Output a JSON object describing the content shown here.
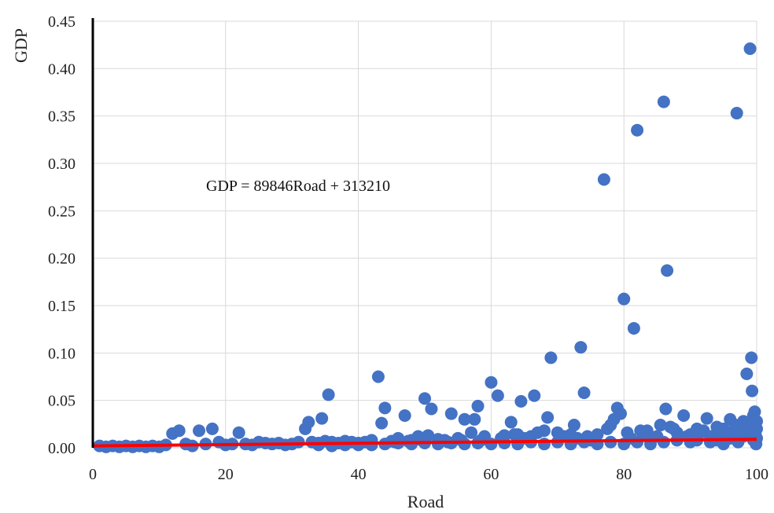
{
  "chart_data": {
    "type": "scatter",
    "xlabel": "Road",
    "ylabel": "GDP",
    "xlim": [
      0,
      100
    ],
    "ylim": [
      0,
      0.45
    ],
    "x_ticks": [
      "0",
      "20",
      "40",
      "60",
      "80",
      "100"
    ],
    "y_ticks": [
      "0.00",
      "0.05",
      "0.10",
      "0.15",
      "0.20",
      "0.25",
      "0.30",
      "0.35",
      "0.40",
      "0.45"
    ],
    "grid": true,
    "equation": "GDP = 89846Road + 313210",
    "point_color": "#4472C4",
    "trend_color": "#FF0000",
    "trendline": {
      "x": [
        0,
        100
      ],
      "y": [
        0.002,
        0.009
      ]
    },
    "points": [
      [
        1,
        0.002
      ],
      [
        2,
        0.001
      ],
      [
        3,
        0.002
      ],
      [
        4,
        0.001
      ],
      [
        5,
        0.002
      ],
      [
        6,
        0.001
      ],
      [
        7,
        0.002
      ],
      [
        8,
        0.001
      ],
      [
        9,
        0.002
      ],
      [
        10,
        0.001
      ],
      [
        11,
        0.003
      ],
      [
        12,
        0.015
      ],
      [
        13,
        0.018
      ],
      [
        14,
        0.004
      ],
      [
        15,
        0.002
      ],
      [
        16,
        0.018
      ],
      [
        17,
        0.004
      ],
      [
        18,
        0.02
      ],
      [
        19,
        0.006
      ],
      [
        20,
        0.003
      ],
      [
        21,
        0.004
      ],
      [
        22,
        0.016
      ],
      [
        23,
        0.004
      ],
      [
        24,
        0.003
      ],
      [
        25,
        0.006
      ],
      [
        26,
        0.005
      ],
      [
        27,
        0.004
      ],
      [
        28,
        0.005
      ],
      [
        29,
        0.003
      ],
      [
        30,
        0.004
      ],
      [
        31,
        0.006
      ],
      [
        32,
        0.02
      ],
      [
        32.5,
        0.027
      ],
      [
        33,
        0.006
      ],
      [
        34,
        0.005
      ],
      [
        34.5,
        0.031
      ],
      [
        35,
        0.007
      ],
      [
        35.5,
        0.056
      ],
      [
        36,
        0.006
      ],
      [
        37,
        0.005
      ],
      [
        38,
        0.007
      ],
      [
        39,
        0.006
      ],
      [
        40,
        0.005
      ],
      [
        41,
        0.006
      ],
      [
        42,
        0.008
      ],
      [
        43,
        0.075
      ],
      [
        43.5,
        0.026
      ],
      [
        44,
        0.042
      ],
      [
        45,
        0.007
      ],
      [
        46,
        0.01
      ],
      [
        47,
        0.034
      ],
      [
        48,
        0.008
      ],
      [
        49,
        0.012
      ],
      [
        50,
        0.052
      ],
      [
        50.5,
        0.013
      ],
      [
        51,
        0.041
      ],
      [
        52,
        0.009
      ],
      [
        53,
        0.008
      ],
      [
        54,
        0.036
      ],
      [
        55,
        0.01
      ],
      [
        56,
        0.03
      ],
      [
        57,
        0.016
      ],
      [
        57.5,
        0.03
      ],
      [
        58,
        0.044
      ],
      [
        59,
        0.012
      ],
      [
        60,
        0.069
      ],
      [
        61,
        0.055
      ],
      [
        62,
        0.013
      ],
      [
        63,
        0.027
      ],
      [
        64,
        0.014
      ],
      [
        64.5,
        0.049
      ],
      [
        65,
        0.01
      ],
      [
        66,
        0.012
      ],
      [
        66.5,
        0.055
      ],
      [
        67,
        0.016
      ],
      [
        68,
        0.018
      ],
      [
        68.5,
        0.032
      ],
      [
        69,
        0.095
      ],
      [
        70,
        0.016
      ],
      [
        71,
        0.012
      ],
      [
        72,
        0.014
      ],
      [
        72.5,
        0.024
      ],
      [
        73,
        0.01
      ],
      [
        73.5,
        0.106
      ],
      [
        74,
        0.058
      ],
      [
        74.5,
        0.012
      ],
      [
        75,
        0.008
      ],
      [
        76,
        0.014
      ],
      [
        77,
        0.283
      ],
      [
        77.5,
        0.02
      ],
      [
        78,
        0.024
      ],
      [
        78.5,
        0.03
      ],
      [
        79,
        0.042
      ],
      [
        79.5,
        0.036
      ],
      [
        80,
        0.157
      ],
      [
        80.5,
        0.016
      ],
      [
        81,
        0.01
      ],
      [
        81.5,
        0.126
      ],
      [
        82,
        0.335
      ],
      [
        82.5,
        0.018
      ],
      [
        83,
        0.014
      ],
      [
        84,
        0.01
      ],
      [
        85,
        0.012
      ],
      [
        85.5,
        0.024
      ],
      [
        86,
        0.365
      ],
      [
        86.3,
        0.041
      ],
      [
        86.5,
        0.187
      ],
      [
        87,
        0.022
      ],
      [
        87.5,
        0.02
      ],
      [
        88,
        0.016
      ],
      [
        89,
        0.034
      ],
      [
        90,
        0.014
      ],
      [
        91,
        0.02
      ],
      [
        92,
        0.018
      ],
      [
        92.5,
        0.031
      ],
      [
        93,
        0.012
      ],
      [
        94,
        0.022
      ],
      [
        95,
        0.02
      ],
      [
        96,
        0.03
      ],
      [
        96.5,
        0.014
      ],
      [
        97,
        0.353
      ],
      [
        97.5,
        0.024
      ],
      [
        98,
        0.028
      ],
      [
        98.5,
        0.078
      ],
      [
        99,
        0.421
      ],
      [
        99.2,
        0.095
      ],
      [
        99.3,
        0.06
      ],
      [
        99.5,
        0.034
      ],
      [
        99.7,
        0.038
      ],
      [
        100,
        0.028
      ],
      [
        100,
        0.02
      ],
      [
        99.8,
        0.014
      ],
      [
        99.5,
        0.008
      ],
      [
        98.7,
        0.018
      ],
      [
        98,
        0.012
      ],
      [
        97.2,
        0.006
      ],
      [
        96,
        0.01
      ],
      [
        95,
        0.004
      ],
      [
        94,
        0.008
      ],
      [
        93,
        0.006
      ],
      [
        91,
        0.008
      ],
      [
        90,
        0.006
      ],
      [
        88,
        0.008
      ],
      [
        86,
        0.006
      ],
      [
        84,
        0.004
      ],
      [
        82,
        0.006
      ],
      [
        80,
        0.004
      ],
      [
        78,
        0.006
      ],
      [
        76,
        0.004
      ],
      [
        74,
        0.006
      ],
      [
        72,
        0.004
      ],
      [
        70,
        0.006
      ],
      [
        68,
        0.004
      ],
      [
        66,
        0.006
      ],
      [
        64,
        0.004
      ],
      [
        62,
        0.005
      ],
      [
        60,
        0.004
      ],
      [
        58,
        0.005
      ],
      [
        56,
        0.004
      ],
      [
        54,
        0.005
      ],
      [
        52,
        0.004
      ],
      [
        50,
        0.005
      ],
      [
        48,
        0.004
      ],
      [
        46,
        0.005
      ],
      [
        44,
        0.004
      ],
      [
        42,
        0.003
      ],
      [
        40,
        0.003
      ],
      [
        38,
        0.003
      ],
      [
        36,
        0.002
      ],
      [
        34,
        0.003
      ],
      [
        63.5,
        0.014
      ],
      [
        61.5,
        0.01
      ],
      [
        58.5,
        0.008
      ],
      [
        55.5,
        0.008
      ],
      [
        53.5,
        0.006
      ],
      [
        49.5,
        0.008
      ],
      [
        47.5,
        0.007
      ],
      [
        45.5,
        0.006
      ],
      [
        83.5,
        0.018
      ],
      [
        89.5,
        0.012
      ],
      [
        91.5,
        0.016
      ],
      [
        93.5,
        0.01
      ],
      [
        95.5,
        0.016
      ],
      [
        97.8,
        0.02
      ],
      [
        99.9,
        0.004
      ],
      [
        100,
        0.01
      ],
      [
        98.9,
        0.026
      ],
      [
        96.8,
        0.024
      ],
      [
        94.8,
        0.014
      ],
      [
        90.5,
        0.01
      ]
    ]
  }
}
